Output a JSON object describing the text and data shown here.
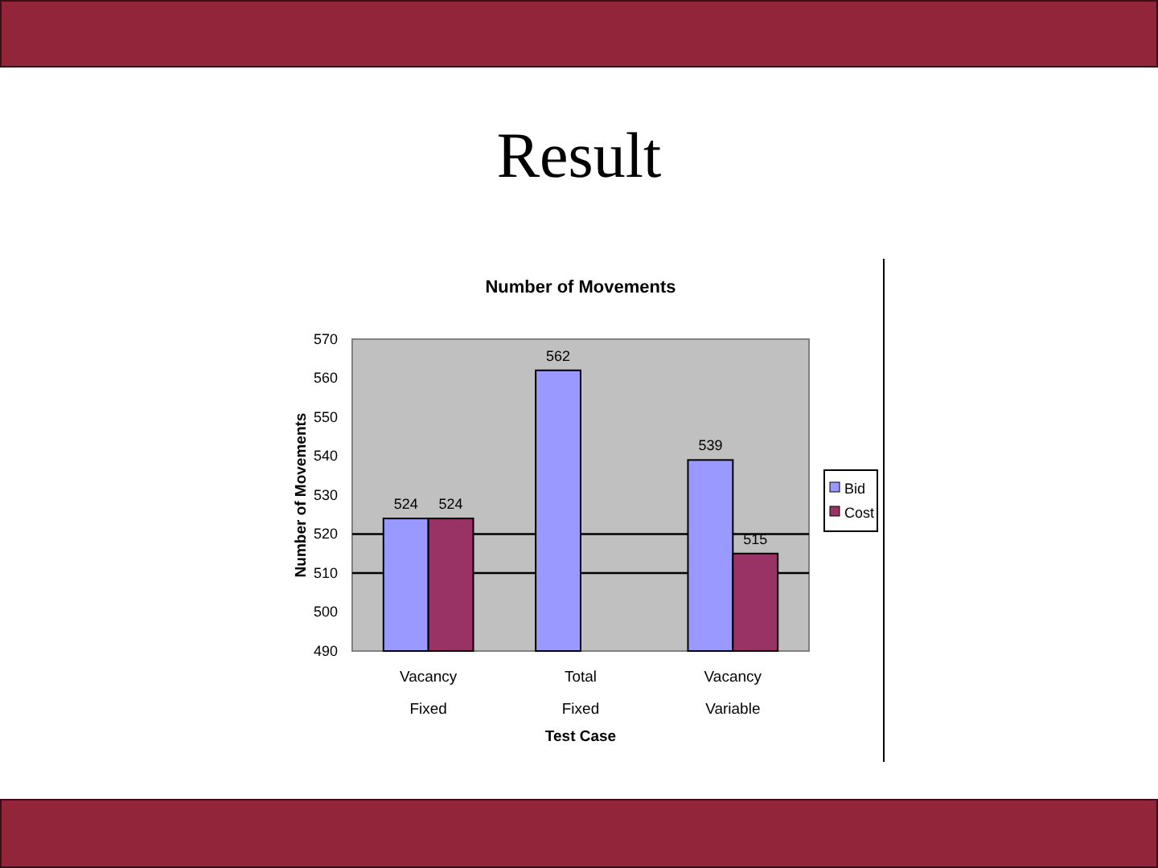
{
  "chart_data": {
    "type": "bar",
    "title": "Result",
    "subtitle": "Number of Movements",
    "xlabel": "Test Case",
    "ylabel": "Number of Movements",
    "categories": [
      "Vacancy\nFixed",
      "Total\nFixed",
      "Vacancy\nVariable"
    ],
    "series": [
      {
        "name": "Bid",
        "color": "#9999ff",
        "values": [
          524,
          562,
          539
        ]
      },
      {
        "name": "Cost",
        "color": "#993366",
        "values": [
          524,
          null,
          515
        ]
      }
    ],
    "ylim": [
      490,
      570
    ],
    "yticks": [
      490,
      500,
      510,
      520,
      530,
      540,
      550,
      560,
      570
    ],
    "ref_lines": [
      {
        "axis": "y",
        "value": 520,
        "color": "#000000"
      },
      {
        "axis": "y",
        "value": 510,
        "color": "#000000"
      }
    ],
    "data_labels": true,
    "legend": "right"
  }
}
